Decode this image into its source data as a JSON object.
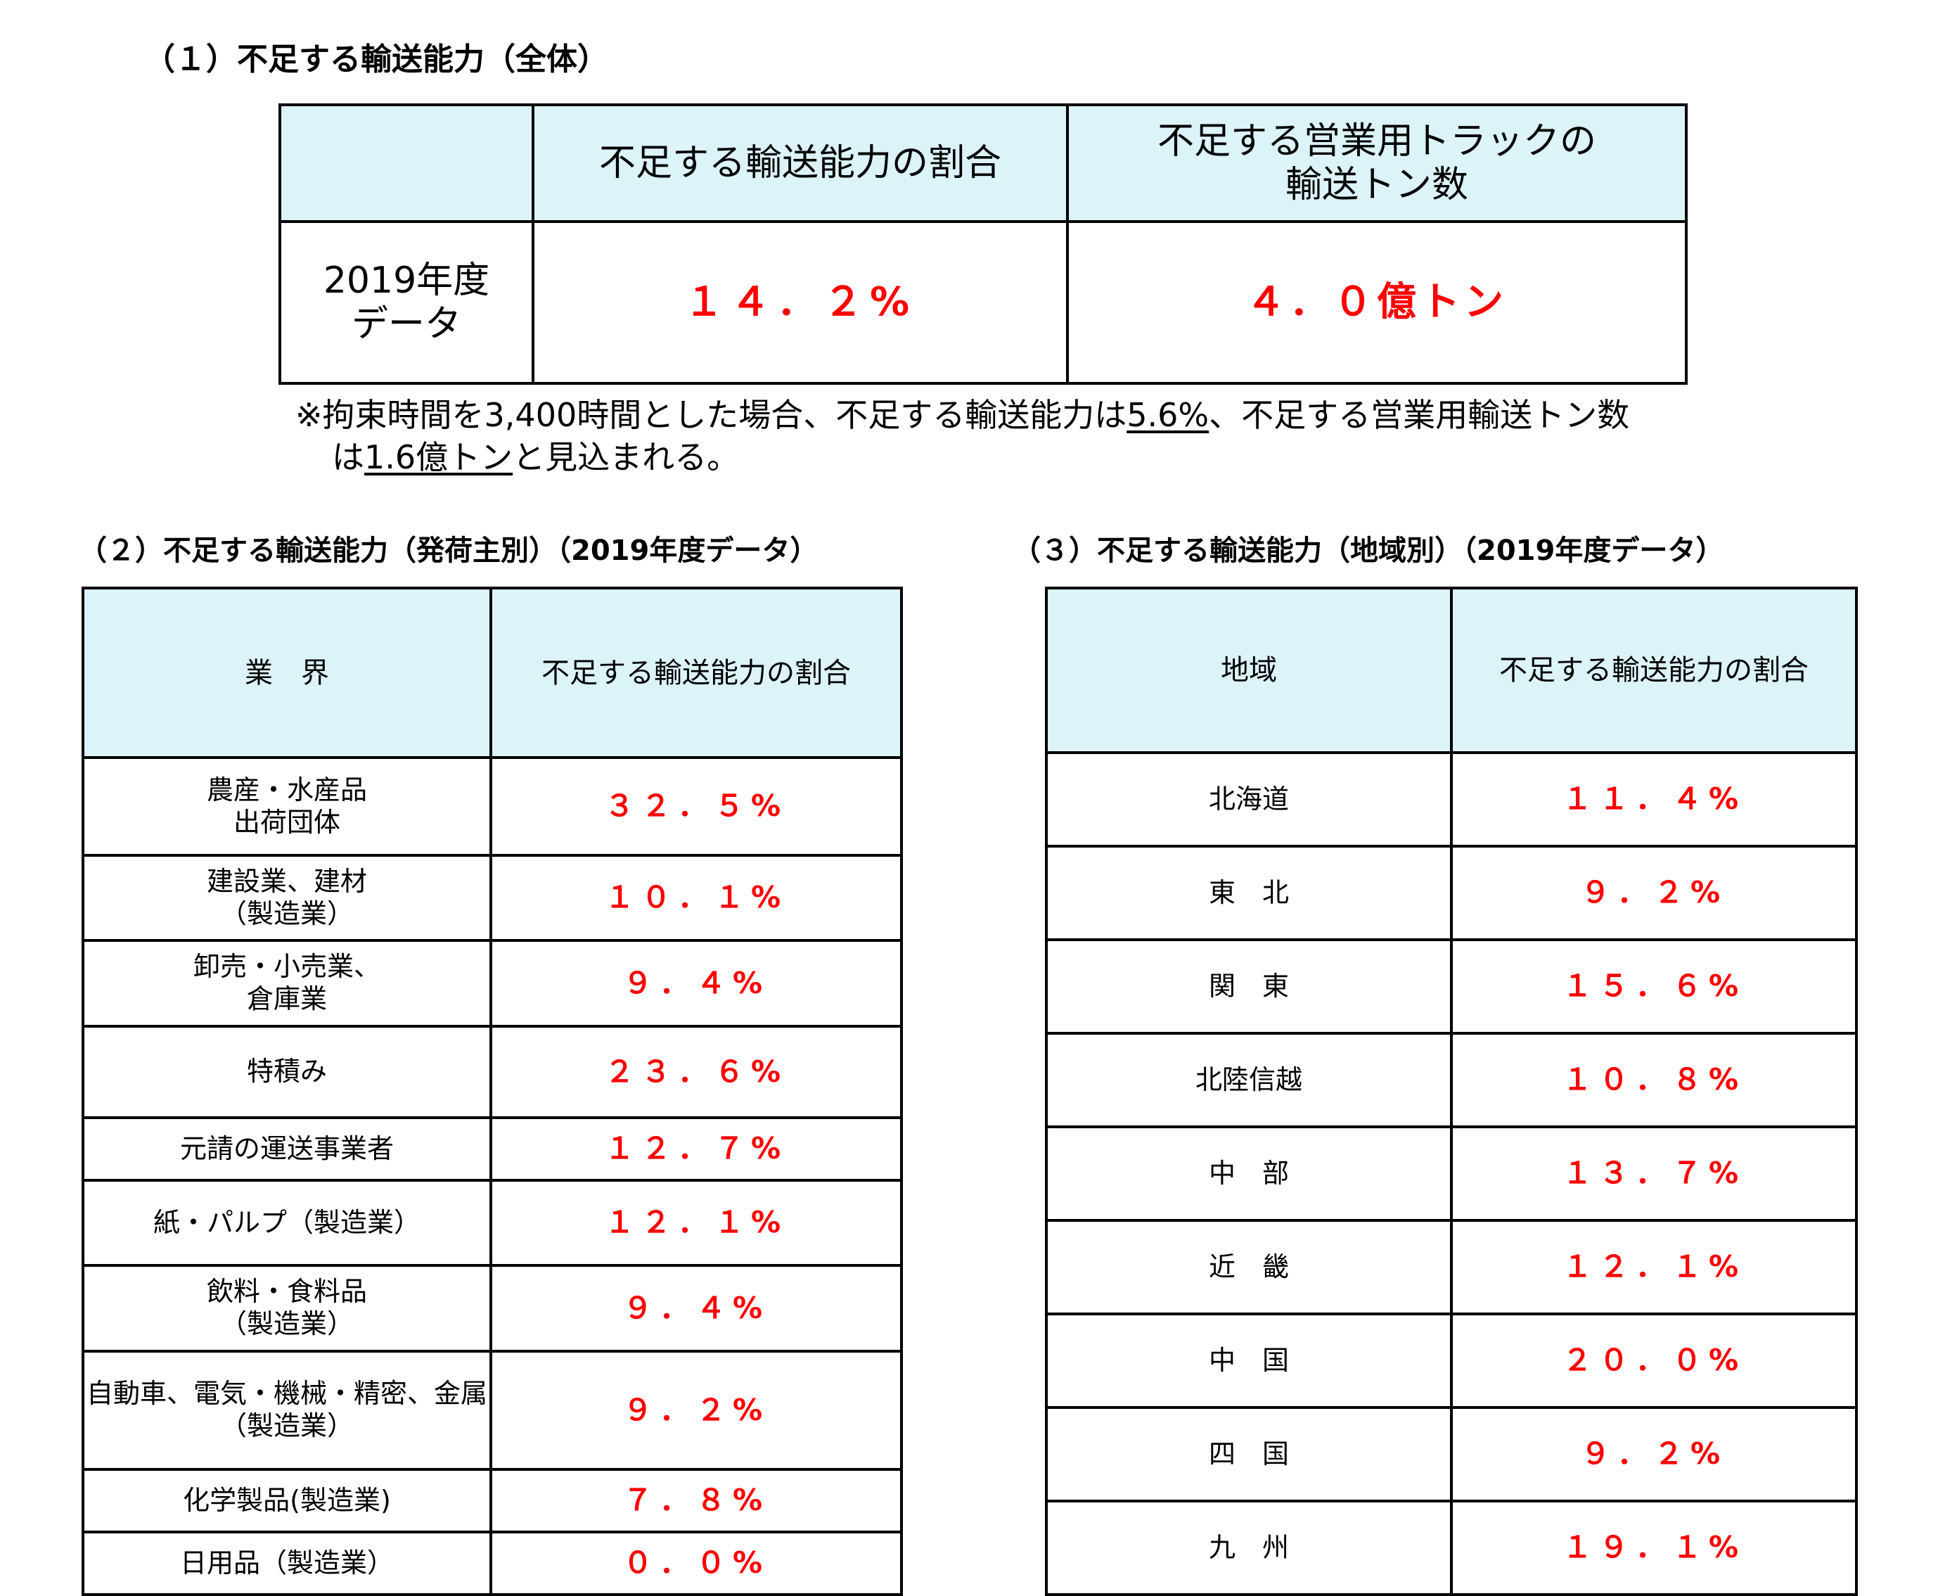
{
  "section1": {
    "heading": "（１）不足する輸送能力（全体）",
    "col_header_1": "不足する輸送能力の割合",
    "col_header_2": "不足する営業用トラックの\n輸送トン数",
    "row_label": "2019年度\nデータ",
    "value_1": "１４．２%",
    "value_2": "４．０億トン",
    "note": {
      "part1": "※拘束時間を3,400時間とした場合、不足する輸送能力は",
      "u1": "5.6%",
      "part2": "、不足する営業用輸送トン数",
      "part3": "は",
      "u2": "1.6億トン",
      "part4": "と見込まれる。"
    }
  },
  "section2": {
    "heading": "（２）不足する輸送能力（発荷主別）（2019年度データ）",
    "col_header_1": "業　界",
    "col_header_2": "不足する輸送能力の割合",
    "rows": [
      {
        "label": "農産・水産品\n出荷団体",
        "value": "３２．５%"
      },
      {
        "label": "建設業、建材\n（製造業）",
        "value": "１０．１%"
      },
      {
        "label": "卸売・小売業、\n倉庫業",
        "value": "９．４%"
      },
      {
        "label": "特積み",
        "value": "２３．６%"
      },
      {
        "label": "元請の運送事業者",
        "value": "１２．７%"
      },
      {
        "label": "紙・パルプ（製造業）",
        "value": "１２．１%"
      },
      {
        "label": "飲料・食料品\n（製造業）",
        "value": "９．４%"
      },
      {
        "label": "自動車、電気・機械・精密、金属\n（製造業）",
        "value": "９．２%"
      },
      {
        "label": "化学製品(製造業)",
        "value": "７．８%"
      },
      {
        "label": "日用品（製造業）",
        "value": "０．０%"
      }
    ]
  },
  "section3": {
    "heading": "（３）不足する輸送能力（地域別）（2019年度データ）",
    "col_header_1": "地域",
    "col_header_2": "不足する輸送能力の割合",
    "rows": [
      {
        "label": "北海道",
        "value": "１１．４%"
      },
      {
        "label": "東　北",
        "value": "９．２%"
      },
      {
        "label": "関　東",
        "value": "１５．６%"
      },
      {
        "label": "北陸信越",
        "value": "１０．８%"
      },
      {
        "label": "中　部",
        "value": "１３．７%"
      },
      {
        "label": "近　畿",
        "value": "１２．１%"
      },
      {
        "label": "中　国",
        "value": "２０．０%"
      },
      {
        "label": "四　国",
        "value": "９．２%"
      },
      {
        "label": "九　州",
        "value": "１９．１%"
      }
    ]
  }
}
